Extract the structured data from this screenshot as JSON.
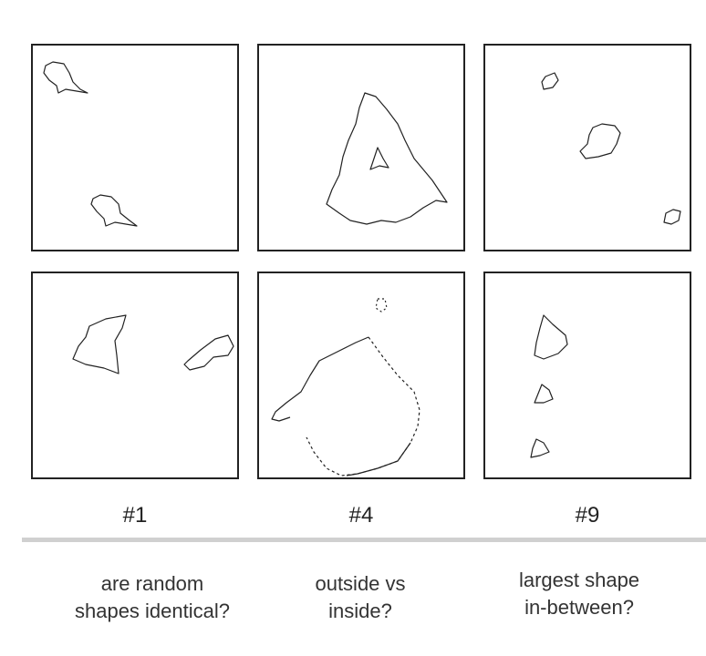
{
  "columns": [
    {
      "label": "#1",
      "caption": "are random\nshapes identical?"
    },
    {
      "label": "#4",
      "caption": "outside vs\ninside?"
    },
    {
      "label": "#9",
      "caption": "largest shape\nin-between?"
    }
  ],
  "colors": {
    "stroke": "#222222",
    "divider": "#d0d0d0",
    "background": "#ffffff"
  }
}
